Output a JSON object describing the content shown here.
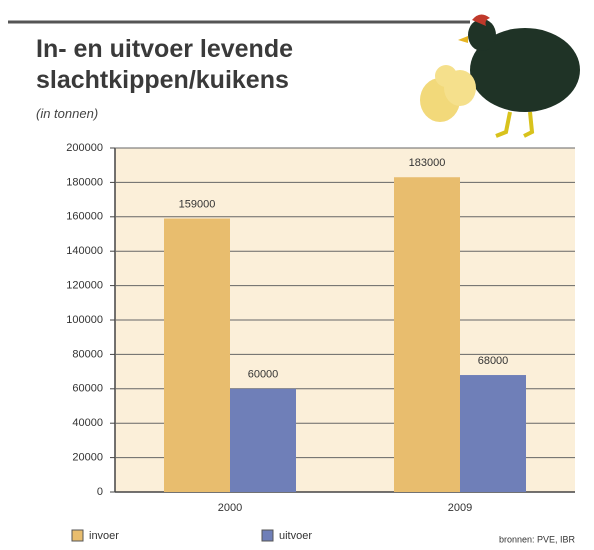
{
  "chart_data": {
    "type": "bar",
    "title": "In- en uitvoer levende slachtkippen/kuikens",
    "subtitle": "(in tonnen)",
    "source": "bronnen: PVE, IBR",
    "categories": [
      "2000",
      "2009"
    ],
    "series": [
      {
        "name": "invoer",
        "color": "#e8bd6e",
        "values": [
          159000,
          183000
        ]
      },
      {
        "name": "uitvoer",
        "color": "#6f7fb8",
        "values": [
          60000,
          68000
        ]
      }
    ],
    "ylim": [
      0,
      200000
    ],
    "yticks": [
      0,
      20000,
      40000,
      60000,
      80000,
      100000,
      120000,
      140000,
      160000,
      180000,
      200000
    ],
    "grid": true
  }
}
